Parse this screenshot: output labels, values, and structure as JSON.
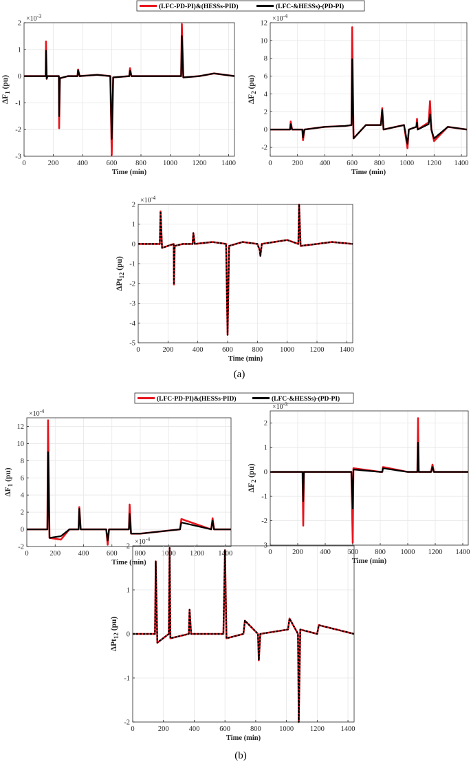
{
  "colors": {
    "red": "#e8141c",
    "black": "#000000"
  },
  "legend": {
    "red": "(LFC-PD-PI)&(HESSs-PID)",
    "black": "(LFC-&HESSs)-(PD-PI)"
  },
  "panels": [
    {
      "caption": "(a)"
    },
    {
      "caption": "(b)"
    }
  ],
  "chart_data": [
    {
      "type": "line",
      "panel": "(a)",
      "id": "a-df1",
      "xlabel": "Time (min)",
      "ylabel": "ΔF_1 (pu)",
      "exponent": "×10^-3",
      "xlim": [
        0,
        1440
      ],
      "ylim": [
        -3,
        2
      ],
      "xticks": [
        0,
        200,
        400,
        600,
        800,
        1000,
        1200,
        1400
      ],
      "yticks": [
        -3,
        -2,
        -1,
        0,
        1,
        2
      ],
      "series": [
        {
          "color": "red",
          "x": [
            0,
            148,
            150,
            155,
            160,
            238,
            240,
            245,
            300,
            365,
            370,
            380,
            500,
            590,
            600,
            610,
            720,
            725,
            735,
            800,
            1075,
            1080,
            1090,
            1200,
            1300,
            1440
          ],
          "y": [
            0,
            0,
            1.3,
            -0.1,
            0,
            0,
            -1.95,
            -0.08,
            0,
            0,
            0.25,
            0,
            0.05,
            0,
            -2.95,
            -0.05,
            0,
            0.3,
            0,
            0,
            0,
            1.95,
            -0.05,
            0,
            0.1,
            0
          ]
        },
        {
          "color": "black",
          "x": [
            0,
            148,
            150,
            155,
            160,
            238,
            240,
            245,
            300,
            365,
            370,
            380,
            500,
            590,
            600,
            610,
            720,
            725,
            735,
            800,
            1075,
            1080,
            1090,
            1200,
            1300,
            1440
          ],
          "y": [
            0,
            0,
            0.95,
            -0.1,
            0,
            0,
            -1.5,
            -0.08,
            0,
            0,
            0.22,
            0,
            0.05,
            0,
            -2.35,
            -0.05,
            0,
            0.2,
            0,
            0,
            0,
            1.5,
            -0.05,
            0,
            0.1,
            0
          ]
        }
      ]
    },
    {
      "type": "line",
      "panel": "(a)",
      "id": "a-df2",
      "xlabel": "Time (min)",
      "ylabel": "ΔF_2 (pu)",
      "exponent": "×10^-4",
      "xlim": [
        0,
        1440
      ],
      "ylim": [
        -3,
        12
      ],
      "xticks": [
        0,
        200,
        400,
        600,
        800,
        1000,
        1200,
        1400
      ],
      "yticks": [
        -2,
        0,
        2,
        4,
        6,
        8,
        10,
        12
      ],
      "series": [
        {
          "color": "red",
          "x": [
            0,
            145,
            150,
            160,
            235,
            240,
            250,
            400,
            550,
            595,
            600,
            610,
            700,
            810,
            820,
            830,
            980,
            1005,
            1015,
            1070,
            1075,
            1080,
            1160,
            1170,
            1180,
            1200,
            1300,
            1440
          ],
          "y": [
            0,
            0,
            0.9,
            0,
            0,
            -1.2,
            0,
            0.3,
            0.4,
            0.5,
            11.5,
            -1,
            0.5,
            0.5,
            2.4,
            0,
            0.5,
            -2.1,
            0,
            0.3,
            1.2,
            0,
            0.8,
            3.2,
            0,
            -1.3,
            0.3,
            0
          ]
        },
        {
          "color": "black",
          "x": [
            0,
            145,
            150,
            160,
            235,
            240,
            250,
            400,
            550,
            595,
            600,
            610,
            700,
            810,
            820,
            830,
            980,
            1005,
            1015,
            1070,
            1075,
            1080,
            1160,
            1170,
            1180,
            1200,
            1300,
            1440
          ],
          "y": [
            0,
            0,
            0.6,
            0,
            0,
            -0.9,
            0,
            0.3,
            0.4,
            0.5,
            7.9,
            -1,
            0.5,
            0.5,
            2.2,
            0,
            0.5,
            -1.6,
            0,
            0.3,
            0.8,
            0,
            0.6,
            1.7,
            0,
            -1,
            0.3,
            0
          ]
        }
      ]
    },
    {
      "type": "line",
      "panel": "(a)",
      "id": "a-dpt12",
      "xlabel": "Time (min)",
      "ylabel": "ΔPt_12 (pu)",
      "exponent": "×10^-4",
      "xlim": [
        0,
        1440
      ],
      "ylim": [
        -5,
        2
      ],
      "xticks": [
        0,
        200,
        400,
        600,
        800,
        1000,
        1200,
        1400
      ],
      "yticks": [
        -5,
        -4,
        -3,
        -2,
        -1,
        0,
        1,
        2
      ],
      "series": [
        {
          "color": "red",
          "x": [
            0,
            145,
            150,
            160,
            238,
            240,
            245,
            300,
            365,
            370,
            380,
            500,
            590,
            600,
            610,
            700,
            800,
            815,
            820,
            830,
            1000,
            1075,
            1080,
            1090,
            1200,
            1300,
            1440
          ],
          "y": [
            0,
            0,
            1.65,
            -0.2,
            0,
            -2.05,
            -0.1,
            0,
            0,
            0.55,
            0,
            0.1,
            0,
            -4.6,
            -0.1,
            0.1,
            0,
            -0.3,
            -0.6,
            0,
            0.2,
            0,
            2.0,
            -0.1,
            0,
            0.1,
            0
          ]
        },
        {
          "color": "black",
          "x": [
            0,
            145,
            150,
            160,
            238,
            240,
            245,
            300,
            365,
            370,
            380,
            500,
            590,
            600,
            610,
            700,
            800,
            815,
            820,
            830,
            1000,
            1075,
            1080,
            1090,
            1200,
            1300,
            1440
          ],
          "y": [
            0,
            0,
            1.65,
            -0.2,
            0,
            -2.05,
            -0.1,
            0,
            0,
            0.55,
            0,
            0.1,
            0,
            -4.6,
            -0.1,
            0.1,
            0,
            -0.3,
            -0.6,
            0,
            0.2,
            0,
            2.0,
            -0.1,
            0,
            0.1,
            0
          ]
        }
      ]
    },
    {
      "type": "line",
      "panel": "(b)",
      "id": "b-df1",
      "xlabel": "Time (min)",
      "ylabel": "ΔF_1 (pu)",
      "exponent": "×10^-4",
      "xlim": [
        0,
        1440
      ],
      "ylim": [
        -2,
        13
      ],
      "xticks": [
        0,
        200,
        400,
        600,
        800,
        1000,
        1200,
        1400
      ],
      "yticks": [
        -2,
        0,
        2,
        4,
        6,
        8,
        10,
        12
      ],
      "series": [
        {
          "color": "red",
          "x": [
            0,
            145,
            150,
            160,
            240,
            300,
            365,
            370,
            380,
            560,
            570,
            580,
            720,
            725,
            735,
            800,
            1080,
            1090,
            1300,
            1310,
            1320,
            1440
          ],
          "y": [
            0,
            0,
            12.7,
            -1,
            -1.2,
            0,
            0,
            2.6,
            0,
            0,
            -1.8,
            0,
            0,
            2.9,
            -0.5,
            -0.5,
            0,
            1.2,
            0,
            1.3,
            0,
            0
          ]
        },
        {
          "color": "black",
          "x": [
            0,
            145,
            150,
            160,
            240,
            300,
            365,
            370,
            380,
            560,
            570,
            580,
            720,
            725,
            735,
            800,
            1080,
            1090,
            1300,
            1310,
            1320,
            1440
          ],
          "y": [
            0,
            0,
            9.0,
            -1,
            -0.8,
            0,
            0,
            2.4,
            0,
            0,
            -1.3,
            0,
            0,
            1.8,
            -0.5,
            -0.5,
            0,
            0.8,
            0,
            1.0,
            0,
            0
          ]
        }
      ]
    },
    {
      "type": "line",
      "panel": "(b)",
      "id": "b-df2",
      "xlabel": "Time (min)",
      "ylabel": "ΔF_2 (pu)",
      "exponent": "×10^-3",
      "xlim": [
        0,
        1440
      ],
      "ylim": [
        -3,
        2.5
      ],
      "xticks": [
        0,
        200,
        400,
        600,
        800,
        1000,
        1200,
        1400
      ],
      "yticks": [
        -3,
        -2,
        -1,
        0,
        1,
        2
      ],
      "series": [
        {
          "color": "red",
          "x": [
            0,
            235,
            240,
            245,
            590,
            600,
            605,
            800,
            815,
            820,
            1000,
            1070,
            1075,
            1080,
            1170,
            1180,
            1190,
            1440
          ],
          "y": [
            0,
            0,
            -2.2,
            0,
            0,
            -2.9,
            0.15,
            0,
            0,
            0.2,
            0,
            0,
            2.2,
            0,
            0,
            0.3,
            0,
            0
          ]
        },
        {
          "color": "black",
          "x": [
            0,
            235,
            240,
            245,
            590,
            600,
            605,
            800,
            815,
            820,
            1000,
            1070,
            1075,
            1080,
            1170,
            1180,
            1190,
            1440
          ],
          "y": [
            0,
            0,
            -1.2,
            0,
            0,
            -1.5,
            0.1,
            0,
            0,
            0.15,
            0,
            0,
            1.2,
            0,
            0,
            0.2,
            0,
            0
          ]
        }
      ]
    },
    {
      "type": "line",
      "panel": "(b)",
      "id": "b-dpt12",
      "xlabel": "Time (min)",
      "ylabel": "ΔPt_12 (pu)",
      "exponent": "×10^-4",
      "xlim": [
        0,
        1440
      ],
      "ylim": [
        -2,
        2
      ],
      "xticks": [
        0,
        200,
        400,
        600,
        800,
        1000,
        1200,
        1400
      ],
      "yticks": [
        -2,
        -1,
        0,
        1,
        2
      ],
      "series": [
        {
          "color": "red",
          "x": [
            0,
            145,
            150,
            160,
            235,
            240,
            245,
            365,
            370,
            380,
            590,
            600,
            610,
            720,
            730,
            815,
            820,
            830,
            1010,
            1020,
            1075,
            1080,
            1090,
            1200,
            1210,
            1440
          ],
          "y": [
            0,
            0,
            1.65,
            -0.2,
            0,
            1.95,
            -0.1,
            0,
            0.55,
            0,
            0,
            1.9,
            -0.1,
            0,
            0.3,
            0,
            -0.6,
            0,
            0.1,
            0.35,
            0,
            -2.0,
            0.1,
            0,
            0.2,
            0
          ]
        },
        {
          "color": "black",
          "x": [
            0,
            145,
            150,
            160,
            235,
            240,
            245,
            365,
            370,
            380,
            590,
            600,
            610,
            720,
            730,
            815,
            820,
            830,
            1010,
            1020,
            1075,
            1080,
            1090,
            1200,
            1210,
            1440
          ],
          "y": [
            0,
            0,
            1.65,
            -0.2,
            0,
            1.95,
            -0.1,
            0,
            0.55,
            0,
            0,
            1.9,
            -0.1,
            0,
            0.3,
            0,
            -0.6,
            0,
            0.1,
            0.35,
            0,
            -2.0,
            0.1,
            0,
            0.2,
            0
          ]
        }
      ]
    }
  ]
}
